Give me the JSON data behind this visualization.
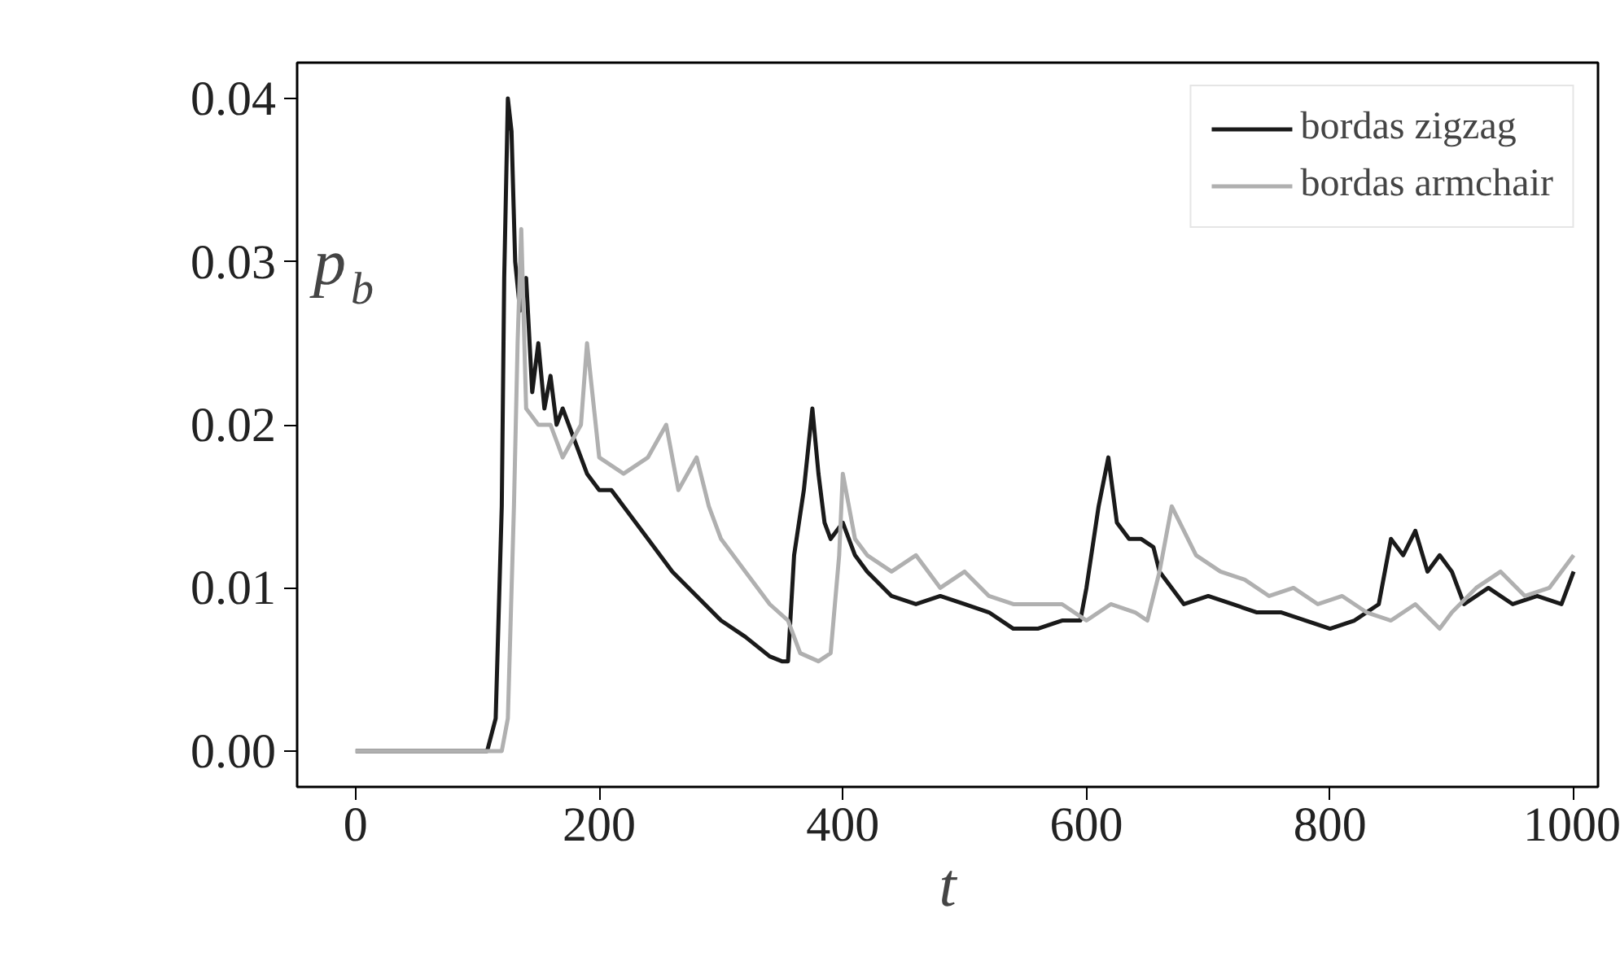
{
  "chart_data": {
    "type": "line",
    "xlabel": "t",
    "ylabel": "p$_{b}$",
    "xlim": [
      -48,
      1020
    ],
    "ylim": [
      -0.0022,
      0.0422
    ],
    "xticks": [
      0,
      200,
      400,
      600,
      800,
      1000
    ],
    "yticks": [
      {
        "value": 0,
        "label": "0.00"
      },
      {
        "value": 0.01,
        "label": "0.01"
      },
      {
        "value": 0.02,
        "label": "0.02"
      },
      {
        "value": 0.03,
        "label": "0.03"
      },
      {
        "value": 0.04,
        "label": "0.04"
      }
    ],
    "legend": "top right",
    "grid": false,
    "series": [
      {
        "name": "bordas zigzag",
        "color": "#1a1a1a",
        "x": [
          0,
          108,
          115,
          120,
          122,
          125,
          128,
          131,
          135,
          140,
          145,
          150,
          155,
          160,
          165,
          170,
          180,
          190,
          200,
          210,
          220,
          240,
          260,
          280,
          300,
          320,
          340,
          350,
          355,
          360,
          368,
          375,
          380,
          385,
          390,
          400,
          410,
          420,
          440,
          460,
          480,
          500,
          520,
          540,
          560,
          580,
          595,
          600,
          610,
          618,
          625,
          635,
          645,
          655,
          660,
          670,
          680,
          700,
          720,
          740,
          760,
          780,
          800,
          820,
          840,
          850,
          860,
          870,
          880,
          890,
          900,
          910,
          930,
          950,
          970,
          990,
          1000
        ],
        "values": [
          0,
          0,
          0.002,
          0.015,
          0.029,
          0.04,
          0.038,
          0.03,
          0.027,
          0.029,
          0.022,
          0.025,
          0.021,
          0.023,
          0.02,
          0.021,
          0.019,
          0.017,
          0.016,
          0.016,
          0.015,
          0.013,
          0.011,
          0.0095,
          0.008,
          0.007,
          0.0058,
          0.0055,
          0.0055,
          0.012,
          0.016,
          0.021,
          0.017,
          0.014,
          0.013,
          0.014,
          0.012,
          0.011,
          0.0095,
          0.009,
          0.0095,
          0.009,
          0.0085,
          0.0075,
          0.0075,
          0.008,
          0.008,
          0.01,
          0.015,
          0.018,
          0.014,
          0.013,
          0.013,
          0.0125,
          0.011,
          0.01,
          0.009,
          0.0095,
          0.009,
          0.0085,
          0.0085,
          0.008,
          0.0075,
          0.008,
          0.009,
          0.013,
          0.012,
          0.0135,
          0.011,
          0.012,
          0.011,
          0.009,
          0.01,
          0.009,
          0.0095,
          0.009,
          0.011
        ]
      },
      {
        "name": "bordas armchair",
        "color": "#b0b0b0",
        "x": [
          0,
          120,
          125,
          130,
          133,
          136,
          140,
          150,
          160,
          170,
          185,
          190,
          200,
          220,
          240,
          255,
          265,
          280,
          290,
          300,
          320,
          340,
          355,
          365,
          380,
          390,
          397,
          400,
          410,
          420,
          440,
          460,
          480,
          500,
          520,
          540,
          560,
          580,
          600,
          620,
          640,
          650,
          660,
          670,
          690,
          710,
          730,
          750,
          770,
          790,
          810,
          830,
          850,
          870,
          890,
          900,
          920,
          940,
          960,
          980,
          1000
        ],
        "values": [
          0,
          0,
          0.002,
          0.015,
          0.025,
          0.032,
          0.021,
          0.02,
          0.02,
          0.018,
          0.02,
          0.025,
          0.018,
          0.017,
          0.018,
          0.02,
          0.016,
          0.018,
          0.015,
          0.013,
          0.011,
          0.009,
          0.008,
          0.006,
          0.0055,
          0.006,
          0.012,
          0.017,
          0.013,
          0.012,
          0.011,
          0.012,
          0.01,
          0.011,
          0.0095,
          0.009,
          0.009,
          0.009,
          0.008,
          0.009,
          0.0085,
          0.008,
          0.011,
          0.015,
          0.012,
          0.011,
          0.0105,
          0.0095,
          0.01,
          0.009,
          0.0095,
          0.0085,
          0.008,
          0.009,
          0.0075,
          0.0085,
          0.01,
          0.011,
          0.0095,
          0.01,
          0.012
        ]
      }
    ]
  }
}
